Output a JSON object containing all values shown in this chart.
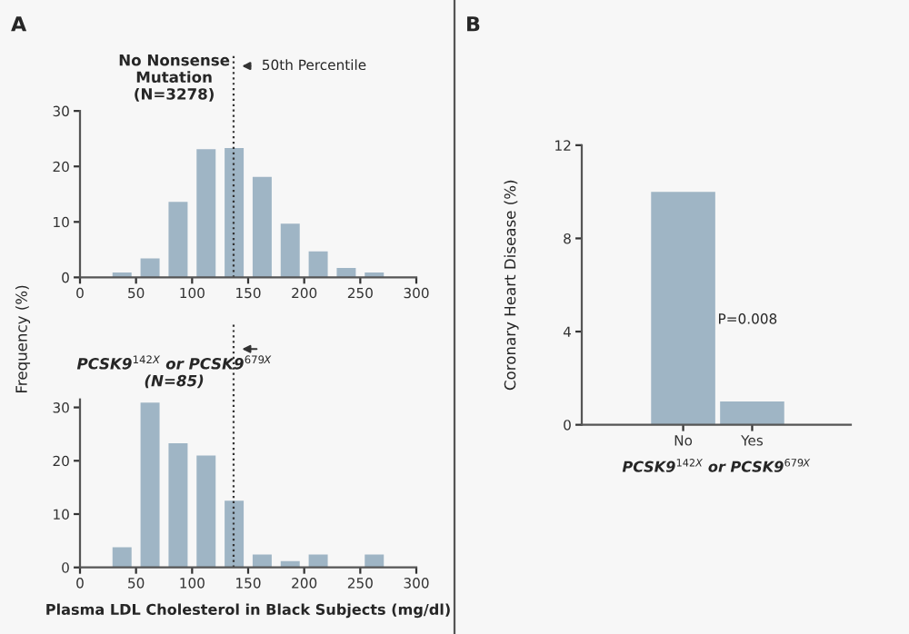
{
  "chart_data": [
    {
      "type": "histogram",
      "title": "No Nonsense\nMutation\n(N=3278)",
      "ylabel": "Frequency (%)",
      "annotations": [
        "A"
      ],
      "bins": [
        25,
        50,
        75,
        100,
        125,
        150,
        175,
        200,
        225,
        250,
        275
      ],
      "values": [
        0.9,
        3.4,
        13.6,
        23.1,
        23.3,
        18.1,
        9.7,
        4.7,
        1.7,
        0.9
      ],
      "color": "#9fb5c5",
      "xlim": [
        0,
        300
      ],
      "xticks": [
        0,
        50,
        100,
        150,
        200,
        250,
        300
      ],
      "ylim": [
        0,
        30
      ],
      "yticks": [
        0,
        10,
        20,
        30
      ],
      "ref_lines": [
        {
          "axis": "x",
          "value": 137,
          "label": "50th Percentile",
          "line_style": "dotted"
        }
      ],
      "grid": false,
      "legend": false
    },
    {
      "type": "histogram",
      "title": "PCSK9$^{142X}$ or PCSK9$^{679X}$\n(N=85)",
      "xlabel": "Plasma LDL Cholesterol in Black Subjects (mg/dl)",
      "bins": [
        25,
        50,
        75,
        100,
        125,
        150,
        175,
        200,
        225,
        250,
        275
      ],
      "values": [
        3.8,
        30.9,
        23.3,
        21.0,
        12.5,
        2.4,
        1.2,
        2.4,
        0,
        2.4
      ],
      "color": "#9fb5c5",
      "xlim": [
        0,
        300
      ],
      "xticks": [
        0,
        50,
        100,
        150,
        200,
        250,
        300
      ],
      "ylim": [
        0,
        31.5
      ],
      "yticks": [
        0,
        10,
        20,
        30
      ],
      "ref_lines": [
        {
          "axis": "x",
          "value": 137,
          "label": null,
          "line_style": "dotted"
        }
      ],
      "grid": false,
      "legend": false
    },
    {
      "type": "bar",
      "ylabel": "Coronary Heart Disease (%)",
      "xlabel": "PCSK9$^{142X}$ or PCSK9$^{679X}$",
      "annotations": [
        "B",
        "P=0.008"
      ],
      "categories": [
        "No",
        "Yes"
      ],
      "values": [
        10.0,
        1.0
      ],
      "color": "#9fb5c5",
      "ylim": [
        0,
        12
      ],
      "yticks": [
        0,
        4,
        8,
        12
      ],
      "grid": false,
      "legend": false
    }
  ]
}
